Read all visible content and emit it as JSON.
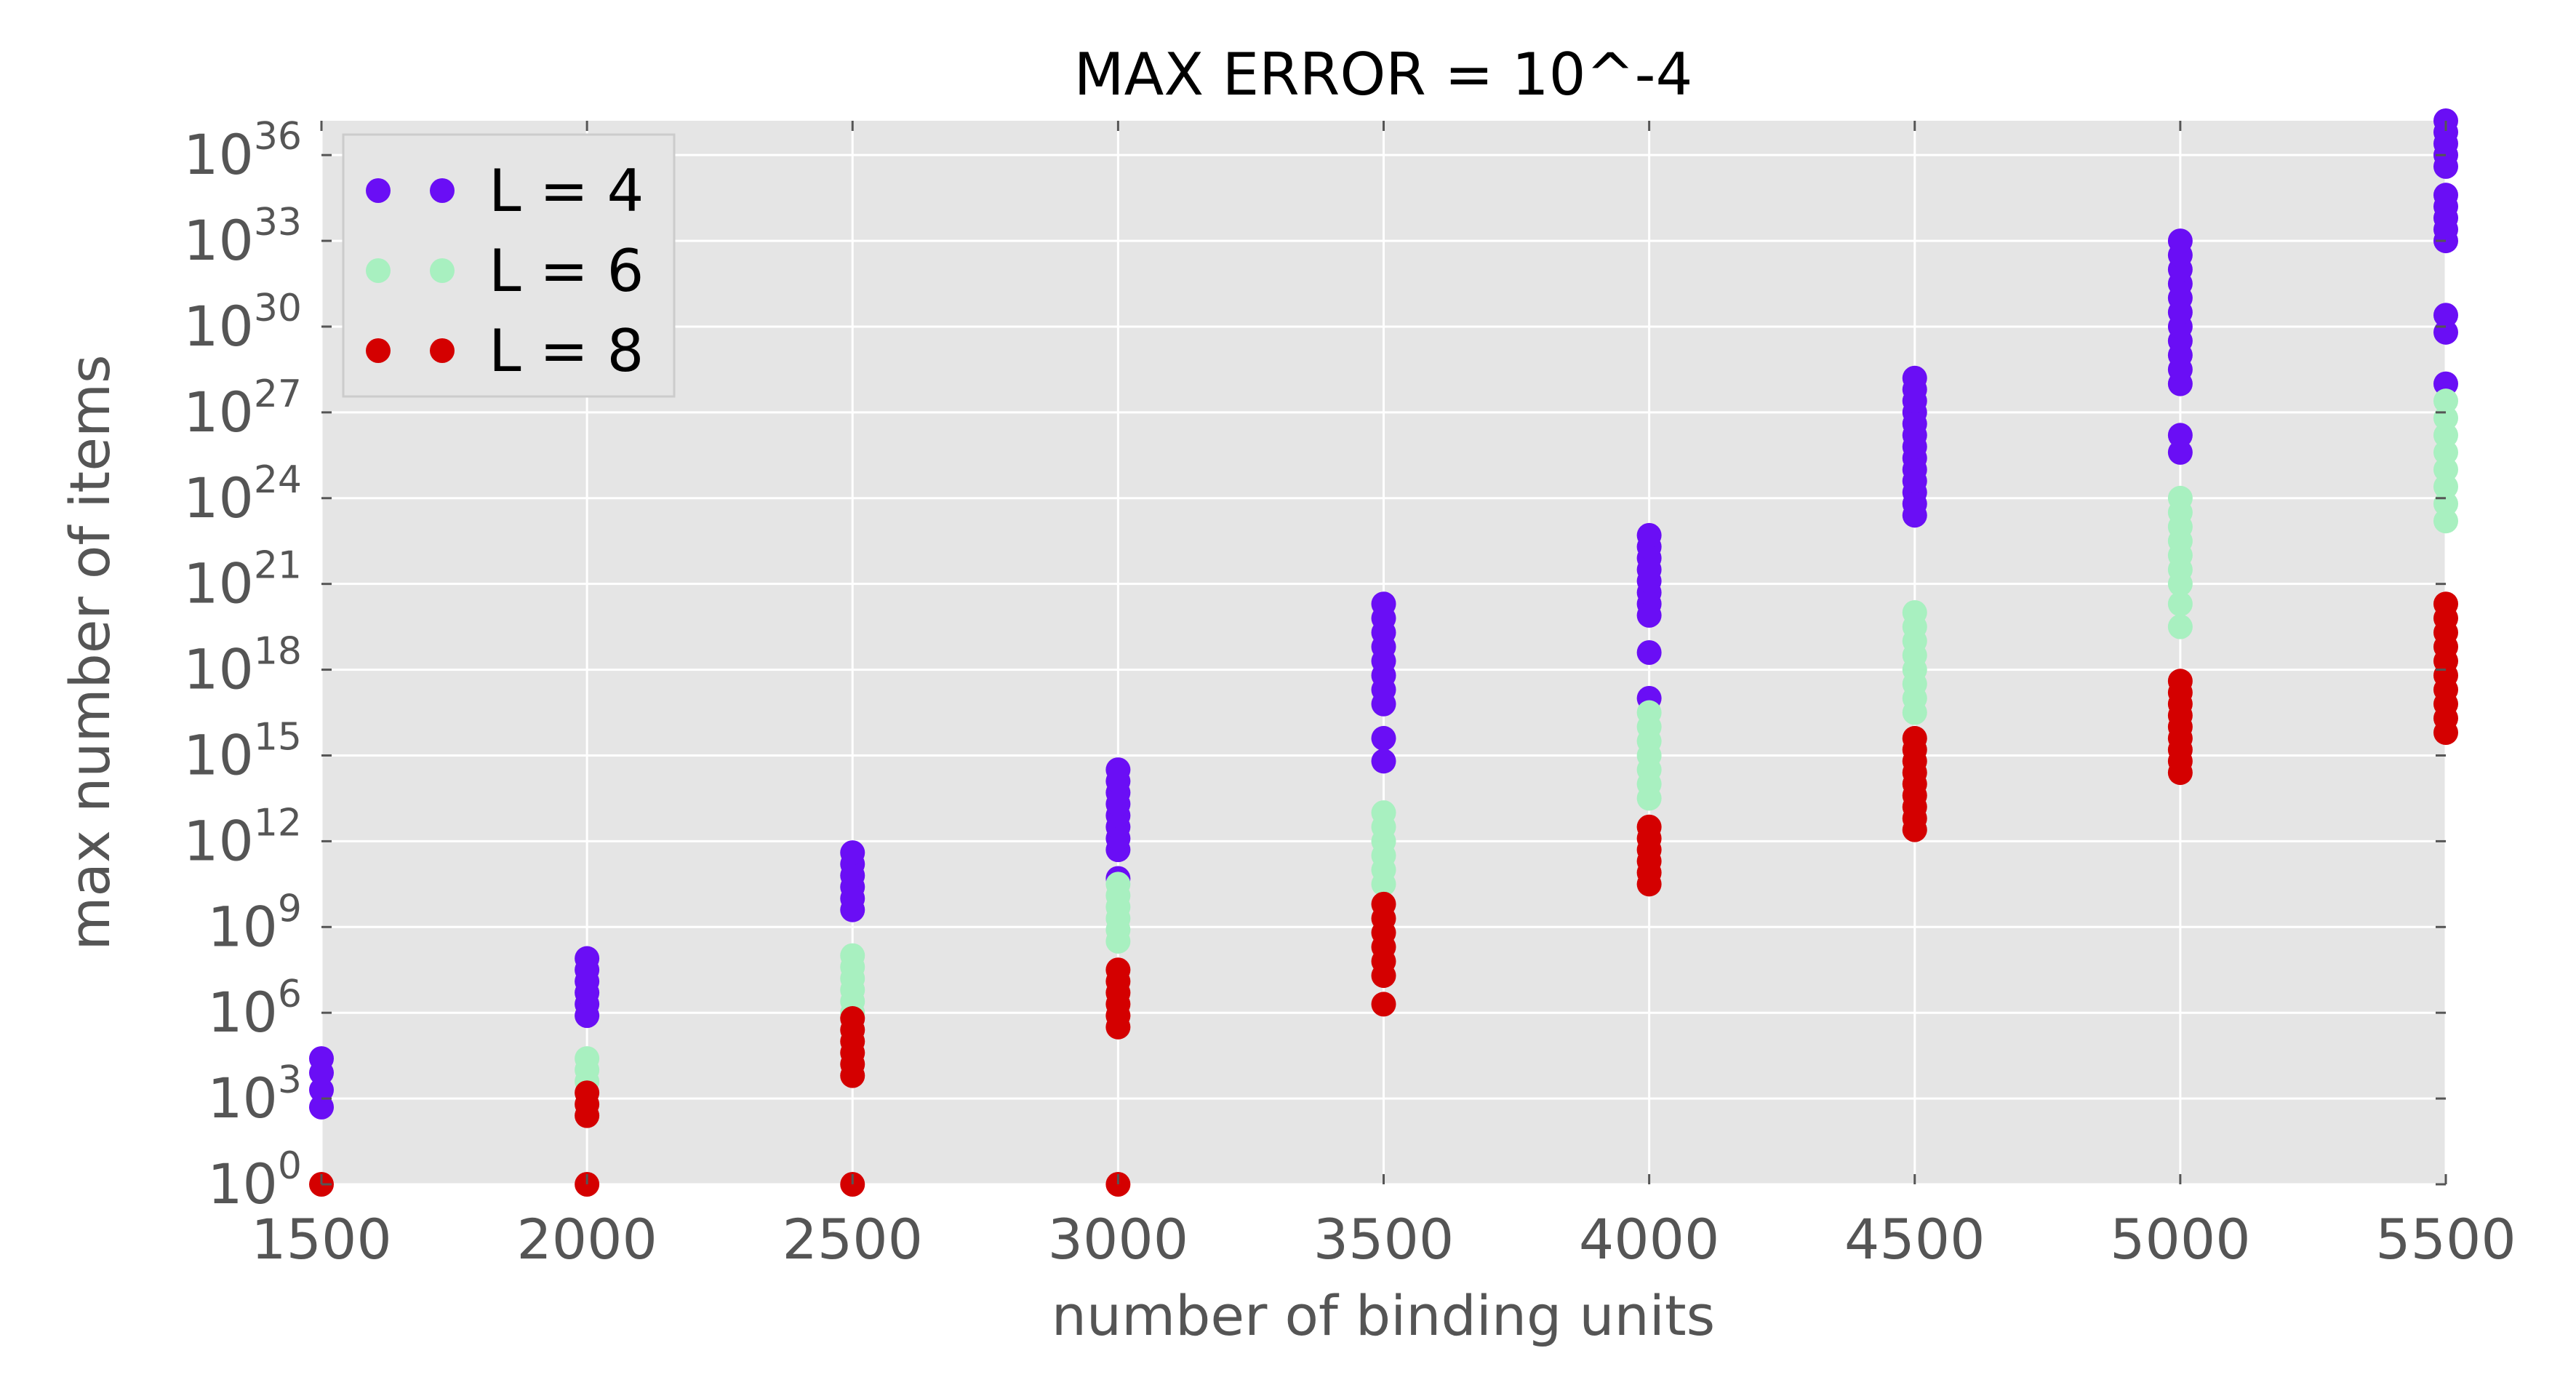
{
  "chart_data": {
    "type": "scatter",
    "title": "MAX ERROR = 10^-4",
    "xlabel": "number of binding units",
    "ylabel": "max number of items",
    "xlim": [
      1500,
      5500
    ],
    "ylim_log10": [
      0,
      37.2
    ],
    "yscale": "log",
    "grid": true,
    "legend_position": "top-left",
    "background": "#e5e5e5",
    "x_ticks": [
      1500,
      2000,
      2500,
      3000,
      3500,
      4000,
      4500,
      5000,
      5500
    ],
    "x_tick_labels": [
      "1500",
      "2000",
      "2500",
      "3000",
      "3500",
      "4000",
      "4500",
      "5000",
      "5500"
    ],
    "y_ticks_log10": [
      0,
      3,
      6,
      9,
      12,
      15,
      18,
      21,
      24,
      27,
      30,
      33,
      36
    ],
    "y_tick_labels": [
      {
        "base": "10",
        "exp": "0"
      },
      {
        "base": "10",
        "exp": "3"
      },
      {
        "base": "10",
        "exp": "6"
      },
      {
        "base": "10",
        "exp": "9"
      },
      {
        "base": "10",
        "exp": "12"
      },
      {
        "base": "10",
        "exp": "15"
      },
      {
        "base": "10",
        "exp": "18"
      },
      {
        "base": "10",
        "exp": "21"
      },
      {
        "base": "10",
        "exp": "24"
      },
      {
        "base": "10",
        "exp": "27"
      },
      {
        "base": "10",
        "exp": "30"
      },
      {
        "base": "10",
        "exp": "33"
      },
      {
        "base": "10",
        "exp": "36"
      }
    ],
    "series": [
      {
        "name": "L = 4",
        "color": "#6a0ef5",
        "points": [
          [
            1500,
            2.7
          ],
          [
            1500,
            3.3
          ],
          [
            1500,
            3.9
          ],
          [
            1500,
            4.4
          ],
          [
            2000,
            5.9
          ],
          [
            2000,
            6.3
          ],
          [
            2000,
            6.7
          ],
          [
            2000,
            7.1
          ],
          [
            2000,
            7.5
          ],
          [
            2000,
            7.9
          ],
          [
            2500,
            9.6
          ],
          [
            2500,
            10.0
          ],
          [
            2500,
            10.4
          ],
          [
            2500,
            10.8
          ],
          [
            2500,
            11.2
          ],
          [
            2500,
            11.6
          ],
          [
            3000,
            10.7
          ],
          [
            3000,
            11.7
          ],
          [
            3000,
            12.1
          ],
          [
            3000,
            12.5
          ],
          [
            3000,
            12.9
          ],
          [
            3000,
            13.3
          ],
          [
            3000,
            13.7
          ],
          [
            3000,
            14.1
          ],
          [
            3000,
            14.5
          ],
          [
            3500,
            14.8
          ],
          [
            3500,
            15.6
          ],
          [
            3500,
            16.8
          ],
          [
            3500,
            17.3
          ],
          [
            3500,
            17.8
          ],
          [
            3500,
            18.3
          ],
          [
            3500,
            18.8
          ],
          [
            3500,
            19.3
          ],
          [
            3500,
            19.8
          ],
          [
            3500,
            20.3
          ],
          [
            4000,
            17.0
          ],
          [
            4000,
            18.6
          ],
          [
            4000,
            19.9
          ],
          [
            4000,
            20.3
          ],
          [
            4000,
            20.7
          ],
          [
            4000,
            21.1
          ],
          [
            4000,
            21.5
          ],
          [
            4000,
            21.9
          ],
          [
            4000,
            22.3
          ],
          [
            4000,
            22.7
          ],
          [
            4500,
            23.4
          ],
          [
            4500,
            23.8
          ],
          [
            4500,
            24.2
          ],
          [
            4500,
            24.6
          ],
          [
            4500,
            25.0
          ],
          [
            4500,
            25.4
          ],
          [
            4500,
            25.8
          ],
          [
            4500,
            26.2
          ],
          [
            4500,
            26.6
          ],
          [
            4500,
            27.0
          ],
          [
            4500,
            27.4
          ],
          [
            4500,
            27.8
          ],
          [
            4500,
            28.2
          ],
          [
            5000,
            25.6
          ],
          [
            5000,
            26.2
          ],
          [
            5000,
            28.0
          ],
          [
            5000,
            28.5
          ],
          [
            5000,
            29.0
          ],
          [
            5000,
            29.5
          ],
          [
            5000,
            30.0
          ],
          [
            5000,
            30.5
          ],
          [
            5000,
            31.0
          ],
          [
            5000,
            31.5
          ],
          [
            5000,
            32.0
          ],
          [
            5000,
            32.5
          ],
          [
            5000,
            33.0
          ],
          [
            5500,
            28.0
          ],
          [
            5500,
            29.8
          ],
          [
            5500,
            30.4
          ],
          [
            5500,
            33.0
          ],
          [
            5500,
            33.4
          ],
          [
            5500,
            33.8
          ],
          [
            5500,
            34.2
          ],
          [
            5500,
            34.6
          ],
          [
            5500,
            35.6
          ],
          [
            5500,
            36.0
          ],
          [
            5500,
            36.4
          ],
          [
            5500,
            36.8
          ],
          [
            5500,
            37.2
          ]
        ]
      },
      {
        "name": "L = 6",
        "color": "#a8f0c0",
        "points": [
          [
            2000,
            3.6
          ],
          [
            2000,
            4.0
          ],
          [
            2000,
            4.4
          ],
          [
            2500,
            6.0
          ],
          [
            2500,
            6.4
          ],
          [
            2500,
            6.8
          ],
          [
            2500,
            7.2
          ],
          [
            2500,
            7.6
          ],
          [
            2500,
            8.0
          ],
          [
            3000,
            8.5
          ],
          [
            3000,
            8.9
          ],
          [
            3000,
            9.3
          ],
          [
            3000,
            9.7
          ],
          [
            3000,
            10.1
          ],
          [
            3000,
            10.5
          ],
          [
            3500,
            10.5
          ],
          [
            3500,
            11.0
          ],
          [
            3500,
            11.5
          ],
          [
            3500,
            12.0
          ],
          [
            3500,
            12.5
          ],
          [
            3500,
            13.0
          ],
          [
            4000,
            13.5
          ],
          [
            4000,
            14.0
          ],
          [
            4000,
            14.5
          ],
          [
            4000,
            15.0
          ],
          [
            4000,
            15.5
          ],
          [
            4000,
            16.0
          ],
          [
            4000,
            16.5
          ],
          [
            4500,
            16.5
          ],
          [
            4500,
            17.0
          ],
          [
            4500,
            17.5
          ],
          [
            4500,
            18.0
          ],
          [
            4500,
            18.5
          ],
          [
            4500,
            19.0
          ],
          [
            4500,
            19.5
          ],
          [
            4500,
            20.0
          ],
          [
            5000,
            19.5
          ],
          [
            5000,
            20.3
          ],
          [
            5000,
            21.0
          ],
          [
            5000,
            21.5
          ],
          [
            5000,
            22.0
          ],
          [
            5000,
            22.5
          ],
          [
            5000,
            23.0
          ],
          [
            5000,
            23.5
          ],
          [
            5000,
            24.0
          ],
          [
            5500,
            23.2
          ],
          [
            5500,
            23.8
          ],
          [
            5500,
            24.4
          ],
          [
            5500,
            25.0
          ],
          [
            5500,
            25.6
          ],
          [
            5500,
            26.2
          ],
          [
            5500,
            26.8
          ],
          [
            5500,
            27.4
          ]
        ]
      },
      {
        "name": "L = 8",
        "color": "#d40000",
        "points": [
          [
            1500,
            0.0
          ],
          [
            2000,
            0.0
          ],
          [
            2000,
            2.4
          ],
          [
            2000,
            2.8
          ],
          [
            2000,
            3.2
          ],
          [
            2500,
            0.0
          ],
          [
            2500,
            3.8
          ],
          [
            2500,
            4.2
          ],
          [
            2500,
            4.6
          ],
          [
            2500,
            5.0
          ],
          [
            2500,
            5.4
          ],
          [
            2500,
            5.8
          ],
          [
            3000,
            0.0
          ],
          [
            3000,
            5.5
          ],
          [
            3000,
            5.9
          ],
          [
            3000,
            6.3
          ],
          [
            3000,
            6.7
          ],
          [
            3000,
            7.1
          ],
          [
            3000,
            7.5
          ],
          [
            3500,
            6.3
          ],
          [
            3500,
            7.3
          ],
          [
            3500,
            7.8
          ],
          [
            3500,
            8.3
          ],
          [
            3500,
            8.8
          ],
          [
            3500,
            9.3
          ],
          [
            3500,
            9.8
          ],
          [
            4000,
            10.5
          ],
          [
            4000,
            10.9
          ],
          [
            4000,
            11.3
          ],
          [
            4000,
            11.7
          ],
          [
            4000,
            12.1
          ],
          [
            4000,
            12.5
          ],
          [
            4500,
            12.4
          ],
          [
            4500,
            12.8
          ],
          [
            4500,
            13.2
          ],
          [
            4500,
            13.6
          ],
          [
            4500,
            14.0
          ],
          [
            4500,
            14.4
          ],
          [
            4500,
            14.8
          ],
          [
            4500,
            15.2
          ],
          [
            4500,
            15.6
          ],
          [
            5000,
            14.4
          ],
          [
            5000,
            14.8
          ],
          [
            5000,
            15.2
          ],
          [
            5000,
            15.6
          ],
          [
            5000,
            16.0
          ],
          [
            5000,
            16.4
          ],
          [
            5000,
            16.8
          ],
          [
            5000,
            17.2
          ],
          [
            5000,
            17.6
          ],
          [
            5500,
            15.8
          ],
          [
            5500,
            16.3
          ],
          [
            5500,
            16.8
          ],
          [
            5500,
            17.3
          ],
          [
            5500,
            17.8
          ],
          [
            5500,
            18.3
          ],
          [
            5500,
            18.8
          ],
          [
            5500,
            19.3
          ],
          [
            5500,
            19.8
          ],
          [
            5500,
            20.3
          ]
        ]
      }
    ]
  }
}
